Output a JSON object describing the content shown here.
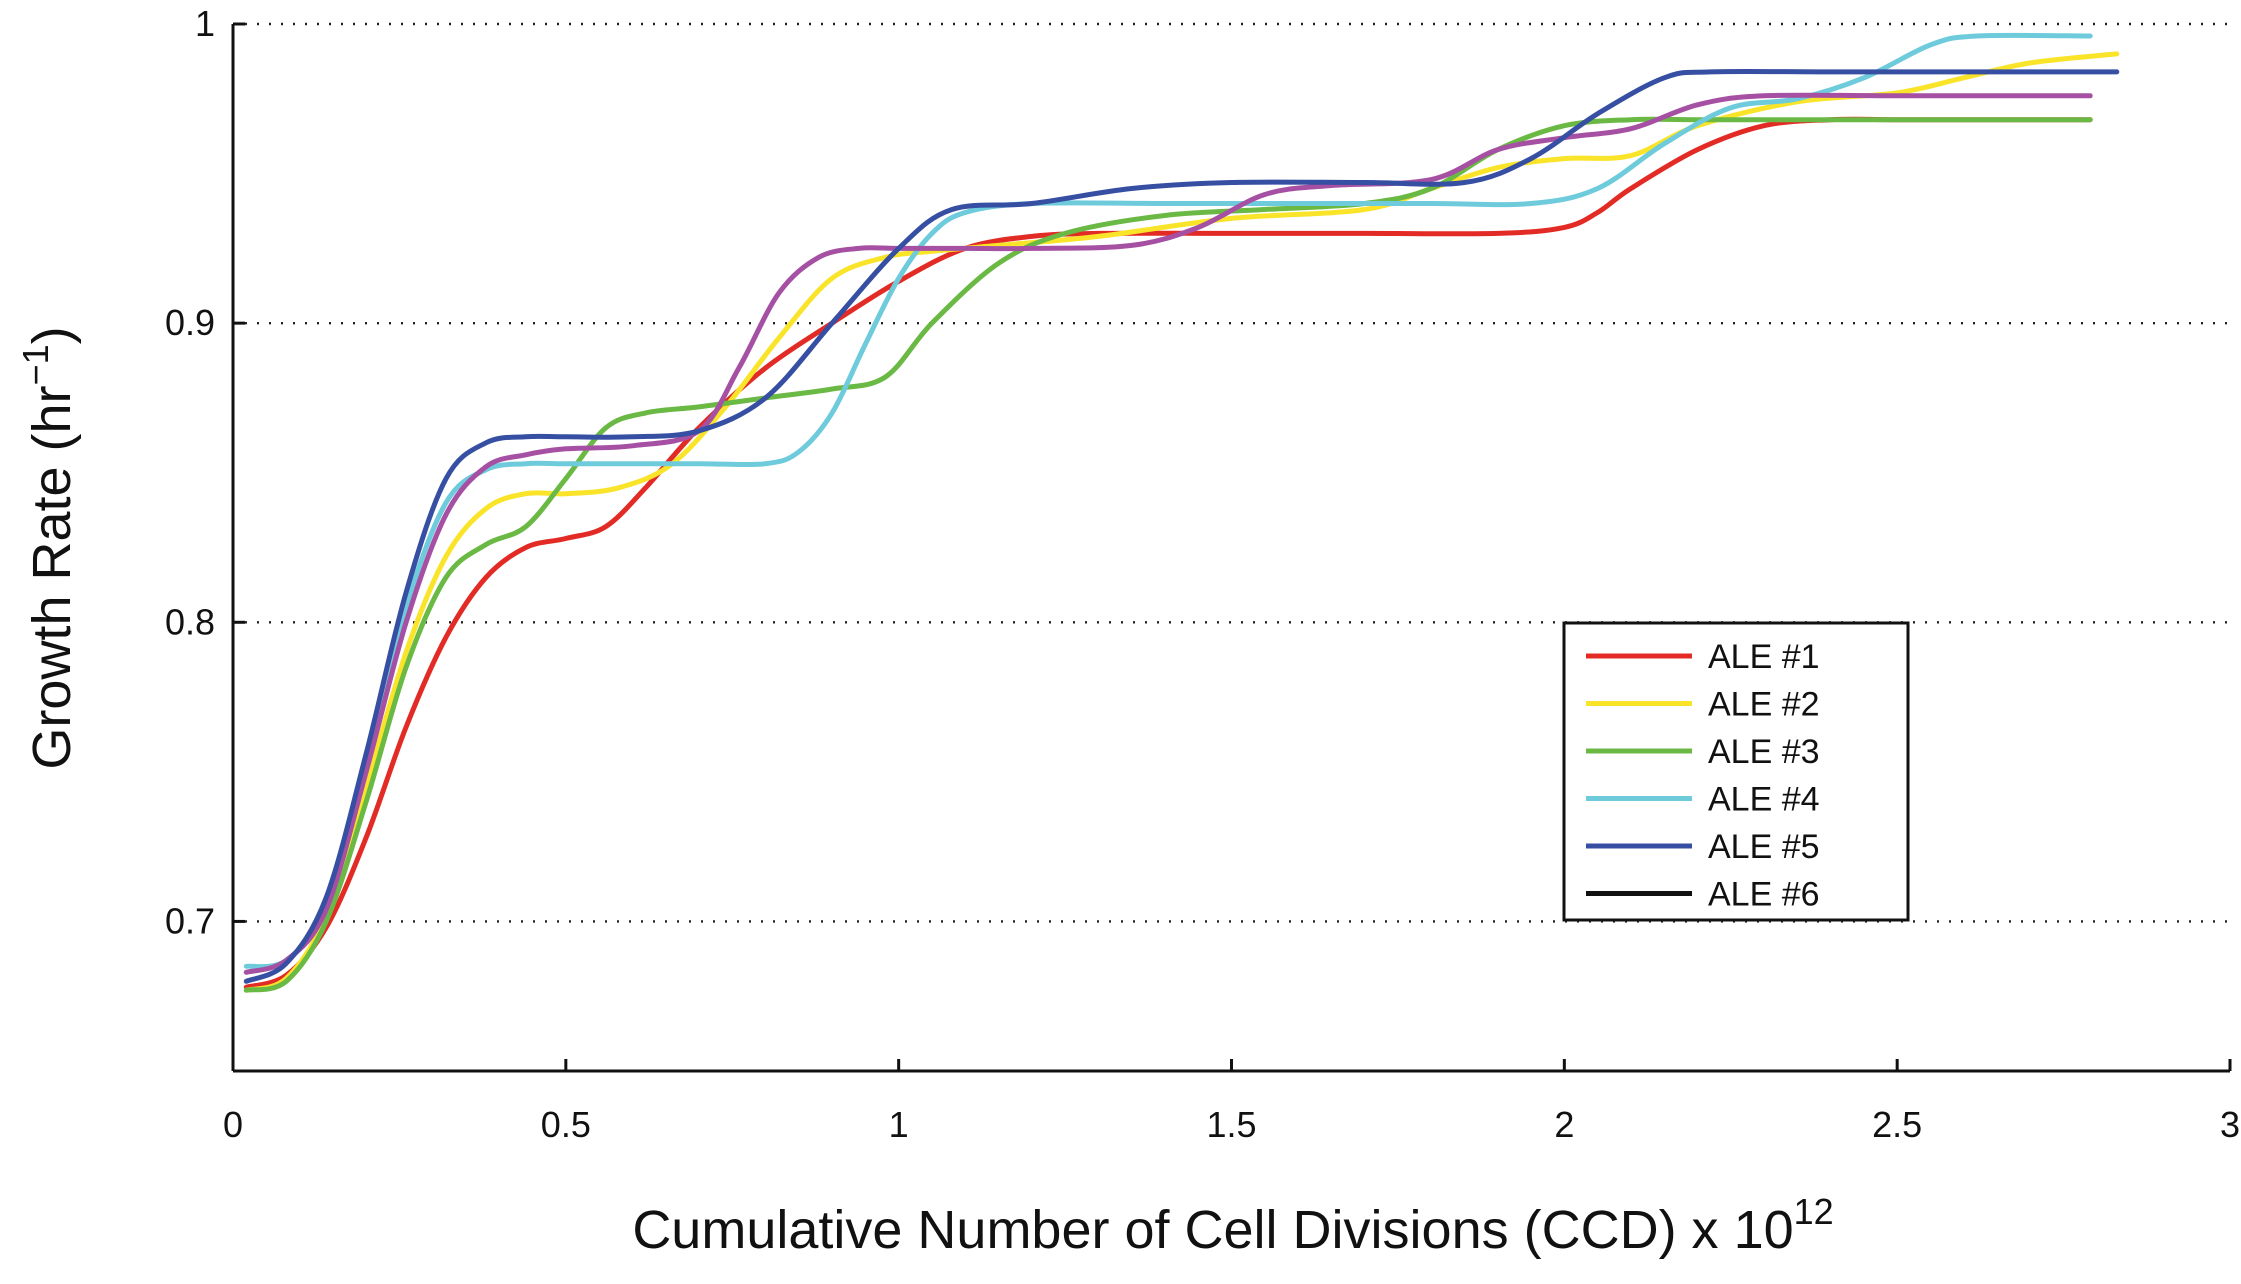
{
  "chart_data": {
    "type": "line",
    "xlabel": "Cumulative Number of Cell Divisions (CCD) x 10",
    "xlabel_exponent": "12",
    "ylabel": "Growth Rate (hr",
    "ylabel_exponent": "−1",
    "ylabel_close": ")",
    "xlim": [
      0,
      3
    ],
    "ylim": [
      0.65,
      1.0
    ],
    "xticks": [
      0,
      0.5,
      1,
      1.5,
      2,
      2.5,
      3
    ],
    "xtick_labels": [
      "0",
      "0.5",
      "1",
      "1.5",
      "2",
      "2.5",
      "3"
    ],
    "yticks": [
      0.7,
      0.8,
      0.9,
      1.0
    ],
    "ytick_labels": [
      "0.7",
      "0.8",
      "0.9",
      "1"
    ],
    "grid": "horizontal dotted",
    "legend_position": "lower-right",
    "series": [
      {
        "name": "ALE #1",
        "color": "#e32b26",
        "x": [
          0.02,
          0.08,
          0.14,
          0.2,
          0.26,
          0.32,
          0.38,
          0.44,
          0.5,
          0.56,
          0.62,
          0.7,
          0.8,
          0.9,
          1.0,
          1.1,
          1.2,
          1.3,
          1.5,
          1.7,
          1.9,
          2.0,
          2.05,
          2.1,
          2.2,
          2.3,
          2.4,
          2.5,
          2.6,
          2.79
        ],
        "y": [
          0.678,
          0.682,
          0.698,
          0.728,
          0.765,
          0.795,
          0.815,
          0.825,
          0.828,
          0.832,
          0.845,
          0.865,
          0.885,
          0.9,
          0.914,
          0.925,
          0.929,
          0.93,
          0.93,
          0.93,
          0.93,
          0.932,
          0.937,
          0.945,
          0.958,
          0.966,
          0.968,
          0.968,
          0.968,
          0.968
        ]
      },
      {
        "name": "ALE #2",
        "color": "#f9e42a",
        "x": [
          0.02,
          0.08,
          0.14,
          0.2,
          0.26,
          0.32,
          0.38,
          0.44,
          0.5,
          0.58,
          0.66,
          0.74,
          0.82,
          0.9,
          0.98,
          1.05,
          1.15,
          1.3,
          1.5,
          1.7,
          1.8,
          1.9,
          2.0,
          2.1,
          2.2,
          2.35,
          2.5,
          2.6,
          2.7,
          2.83
        ],
        "y": [
          0.677,
          0.681,
          0.702,
          0.745,
          0.79,
          0.822,
          0.838,
          0.843,
          0.843,
          0.845,
          0.853,
          0.872,
          0.895,
          0.915,
          0.922,
          0.924,
          0.926,
          0.929,
          0.935,
          0.938,
          0.945,
          0.952,
          0.955,
          0.956,
          0.966,
          0.974,
          0.977,
          0.982,
          0.987,
          0.99
        ]
      },
      {
        "name": "ALE #3",
        "color": "#6bb945",
        "x": [
          0.02,
          0.08,
          0.14,
          0.2,
          0.26,
          0.32,
          0.38,
          0.44,
          0.5,
          0.56,
          0.62,
          0.7,
          0.8,
          0.9,
          0.98,
          1.05,
          1.15,
          1.25,
          1.4,
          1.55,
          1.7,
          1.8,
          1.9,
          2.0,
          2.1,
          2.2,
          2.4,
          2.6,
          2.79
        ],
        "y": [
          0.677,
          0.68,
          0.7,
          0.74,
          0.785,
          0.815,
          0.826,
          0.832,
          0.848,
          0.865,
          0.87,
          0.872,
          0.875,
          0.878,
          0.882,
          0.9,
          0.92,
          0.93,
          0.936,
          0.938,
          0.94,
          0.945,
          0.958,
          0.966,
          0.968,
          0.968,
          0.968,
          0.968,
          0.968
        ]
      },
      {
        "name": "ALE #4",
        "color": "#6ecbdc",
        "x": [
          0.02,
          0.08,
          0.14,
          0.2,
          0.26,
          0.32,
          0.38,
          0.44,
          0.5,
          0.6,
          0.7,
          0.8,
          0.85,
          0.9,
          0.95,
          1.0,
          1.05,
          1.1,
          1.2,
          1.4,
          1.6,
          1.8,
          1.95,
          2.05,
          2.15,
          2.25,
          2.35,
          2.45,
          2.55,
          2.62,
          2.79
        ],
        "y": [
          0.685,
          0.687,
          0.705,
          0.752,
          0.805,
          0.84,
          0.851,
          0.853,
          0.853,
          0.853,
          0.853,
          0.853,
          0.857,
          0.87,
          0.893,
          0.915,
          0.93,
          0.937,
          0.94,
          0.94,
          0.94,
          0.94,
          0.94,
          0.945,
          0.96,
          0.972,
          0.975,
          0.982,
          0.993,
          0.996,
          0.996
        ]
      },
      {
        "name": "ALE #5",
        "color": "#364fa2",
        "x": [
          0.02,
          0.08,
          0.14,
          0.2,
          0.26,
          0.32,
          0.38,
          0.44,
          0.5,
          0.6,
          0.7,
          0.8,
          0.9,
          1.0,
          1.08,
          1.2,
          1.35,
          1.5,
          1.7,
          1.85,
          1.95,
          2.05,
          2.15,
          2.22,
          2.4,
          2.6,
          2.83
        ],
        "y": [
          0.68,
          0.686,
          0.708,
          0.756,
          0.81,
          0.848,
          0.86,
          0.862,
          0.862,
          0.862,
          0.864,
          0.875,
          0.9,
          0.925,
          0.938,
          0.94,
          0.945,
          0.947,
          0.947,
          0.947,
          0.955,
          0.97,
          0.982,
          0.984,
          0.984,
          0.984,
          0.984
        ]
      },
      {
        "name": "ALE #6",
        "color": "#111111",
        "x": [],
        "y": []
      },
      {
        "name": "",
        "color": "#a650a4",
        "x": [
          0.02,
          0.08,
          0.14,
          0.2,
          0.26,
          0.32,
          0.38,
          0.44,
          0.5,
          0.6,
          0.7,
          0.76,
          0.82,
          0.88,
          0.94,
          1.0,
          1.1,
          1.2,
          1.35,
          1.45,
          1.55,
          1.65,
          1.8,
          1.9,
          2.0,
          2.1,
          2.2,
          2.3,
          2.5,
          2.79
        ],
        "y": [
          0.683,
          0.687,
          0.704,
          0.75,
          0.8,
          0.836,
          0.852,
          0.856,
          0.858,
          0.859,
          0.864,
          0.885,
          0.91,
          0.922,
          0.925,
          0.925,
          0.925,
          0.925,
          0.926,
          0.932,
          0.943,
          0.946,
          0.948,
          0.958,
          0.962,
          0.965,
          0.973,
          0.976,
          0.976,
          0.976
        ]
      }
    ]
  }
}
